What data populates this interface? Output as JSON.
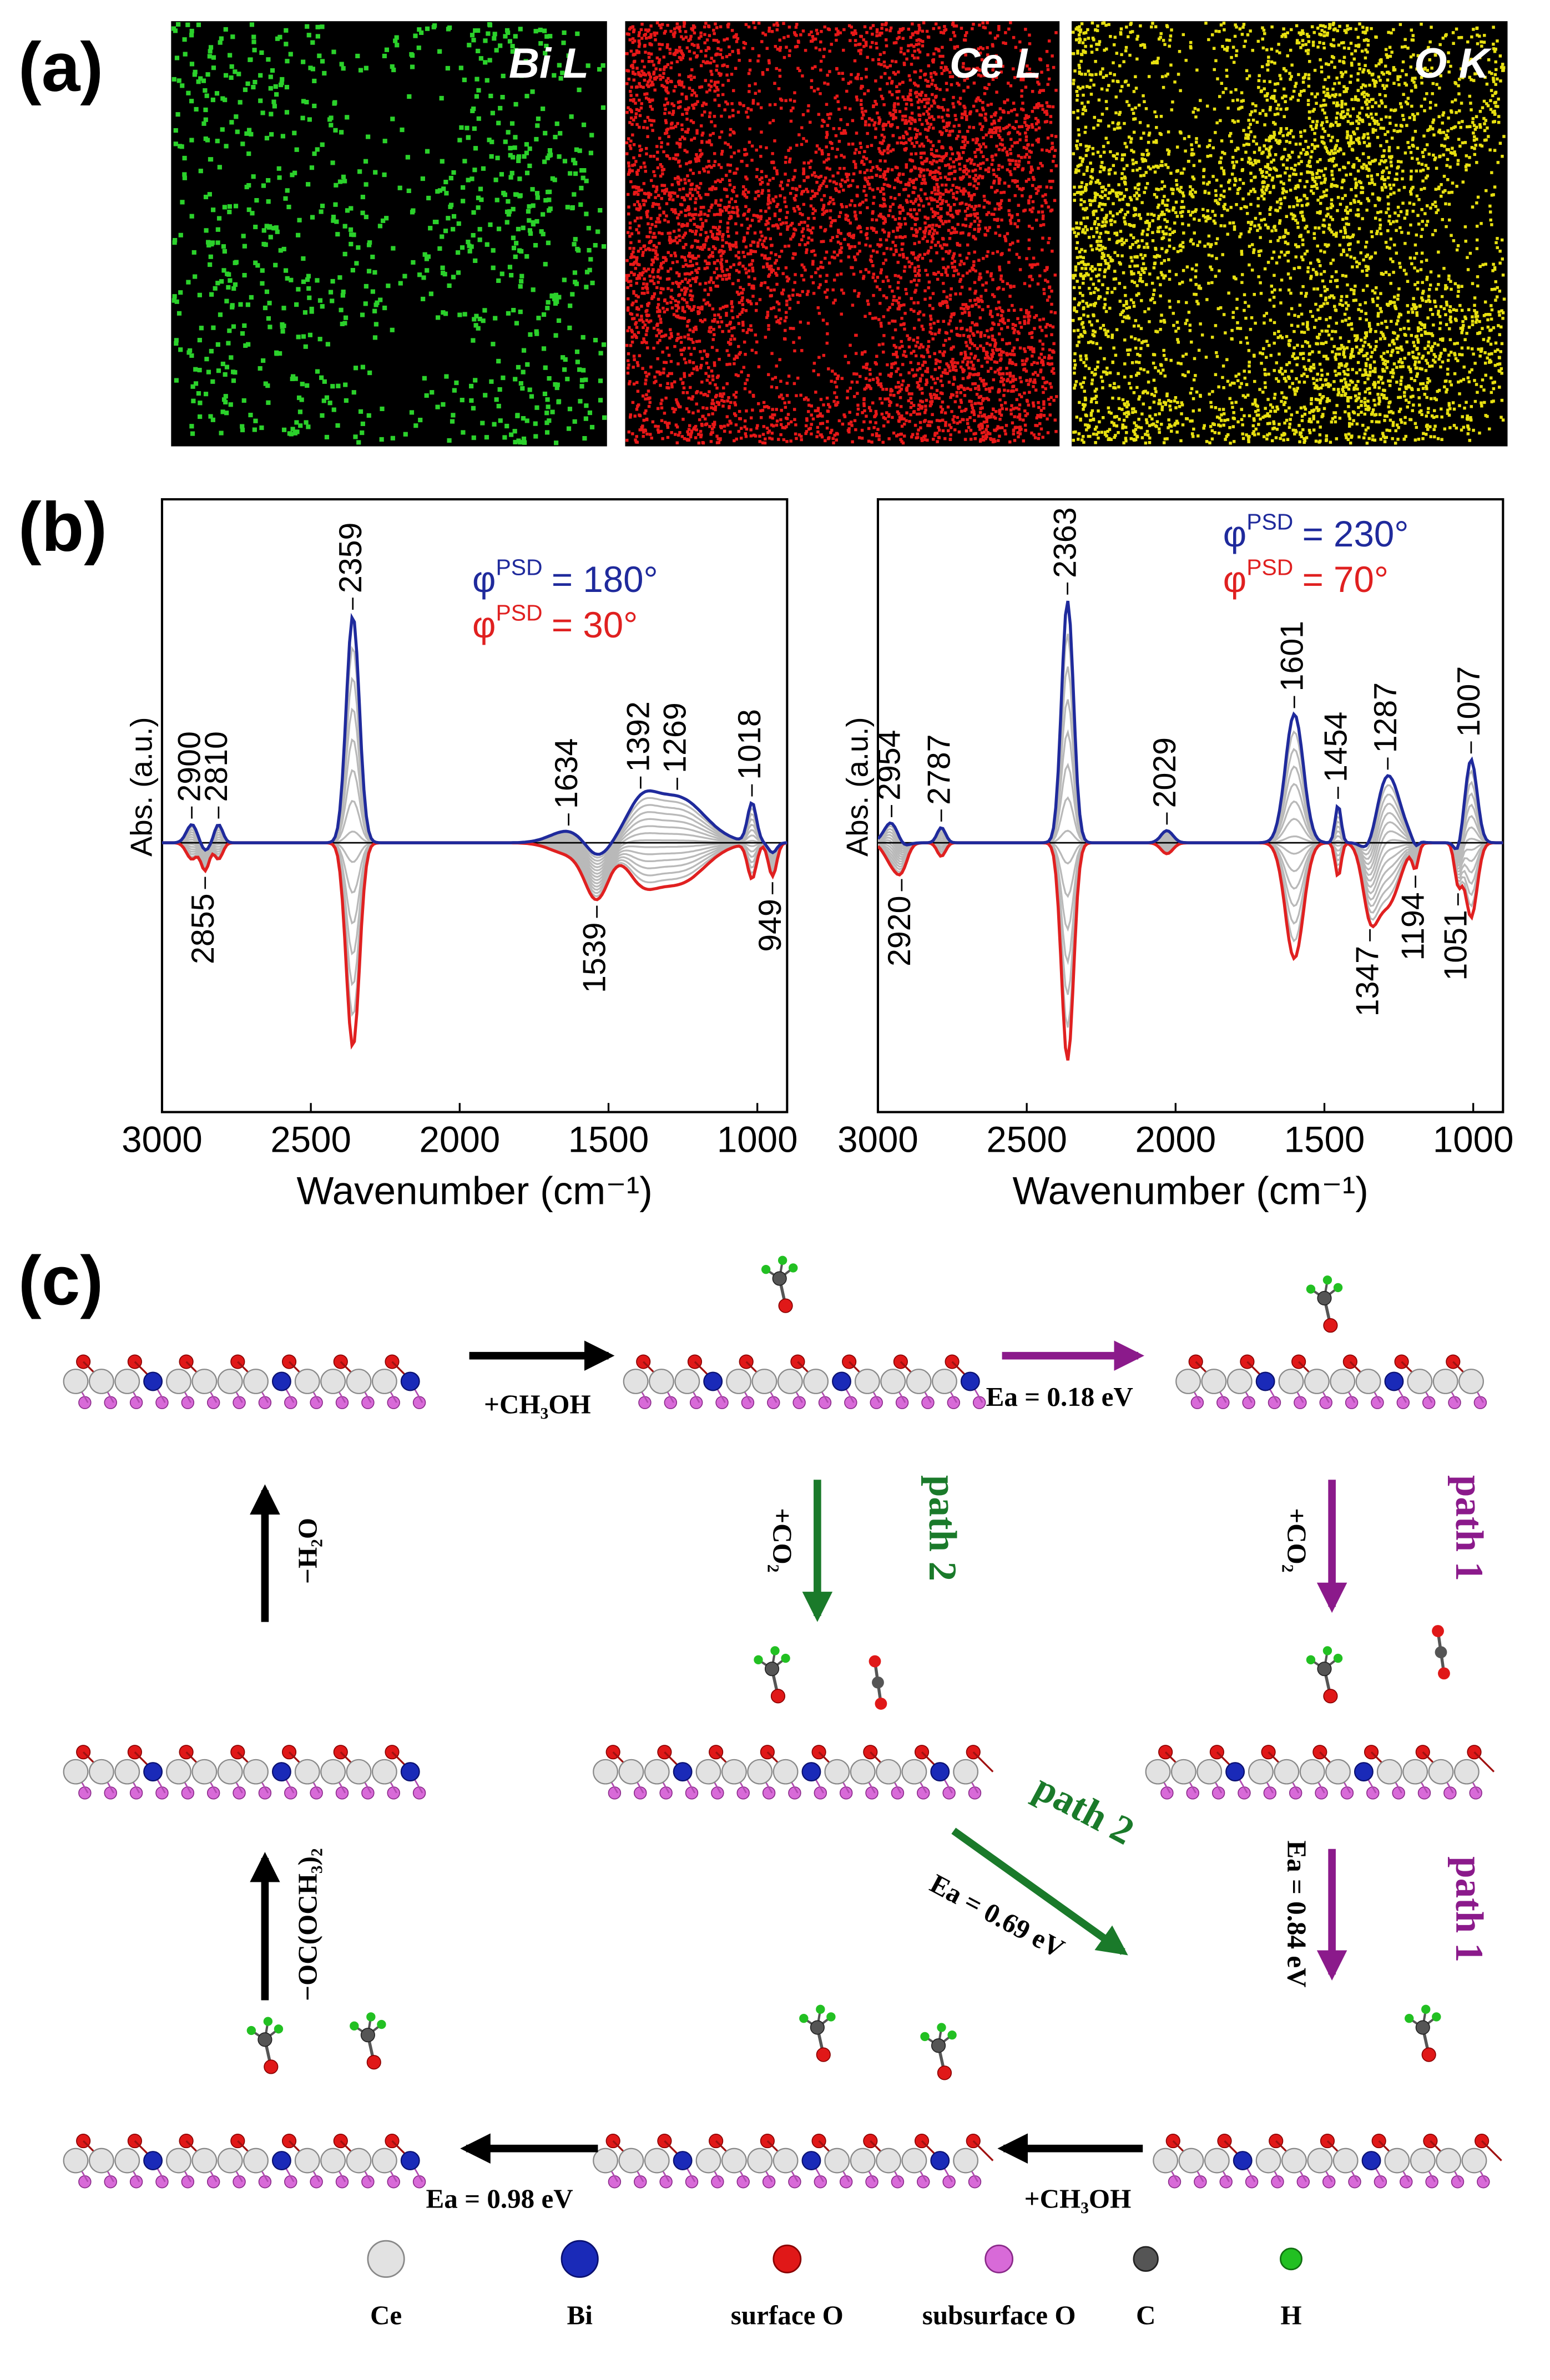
{
  "panels": {
    "a": "(a)",
    "b": "(b)",
    "c": "(c)"
  },
  "maps": [
    "Bi L",
    "Ce L",
    "O K"
  ],
  "spectra": [
    {
      "y_label": "Abs. (a.u.)",
      "x_label": "Wavenumber (cm⁻¹)",
      "xlim": [
        3000,
        900
      ],
      "xticks": [
        3000,
        2500,
        2000,
        1500,
        1000
      ],
      "legend": [
        {
          "symbol": "φ",
          "sup": "PSD",
          "text": "= 180°",
          "color": "#1f2a9c"
        },
        {
          "symbol": "φ",
          "sup": "PSD",
          "text": "= 30°",
          "color": "#e02020"
        }
      ],
      "peaks_up": [
        2900,
        2810,
        2359,
        1634,
        1392,
        1269,
        1018
      ],
      "peaks_down": [
        2855,
        1539,
        949
      ]
    },
    {
      "y_label": "Abs. (a.u.)",
      "x_label": "Wavenumber (cm⁻¹)",
      "xlim": [
        3000,
        900
      ],
      "xticks": [
        3000,
        2500,
        2000,
        1500,
        1000
      ],
      "legend": [
        {
          "symbol": "φ",
          "sup": "PSD",
          "text": "= 230°",
          "color": "#1f2a9c"
        },
        {
          "symbol": "φ",
          "sup": "PSD",
          "text": "= 70°",
          "color": "#e02020"
        }
      ],
      "peaks_up": [
        2954,
        2787,
        2363,
        2029,
        1601,
        1454,
        1287,
        1007
      ],
      "peaks_down": [
        2920,
        1347,
        1194,
        1051
      ]
    }
  ],
  "scheme": {
    "labels": [
      "+CH₃OH",
      "Ea = 0.18 eV",
      "+CO₂",
      "path 2",
      "+CO₂",
      "path 1",
      "−H₂O",
      "path 2",
      "Ea = 0.69 eV",
      "Ea = 0.84 eV",
      "path 1",
      "−OC(OCH₃)₂",
      "+CH₃OH",
      "Ea = 0.98 eV"
    ]
  },
  "legend": [
    "Ce",
    "Bi",
    "surface O",
    "subsurface O",
    "C",
    "H"
  ]
}
